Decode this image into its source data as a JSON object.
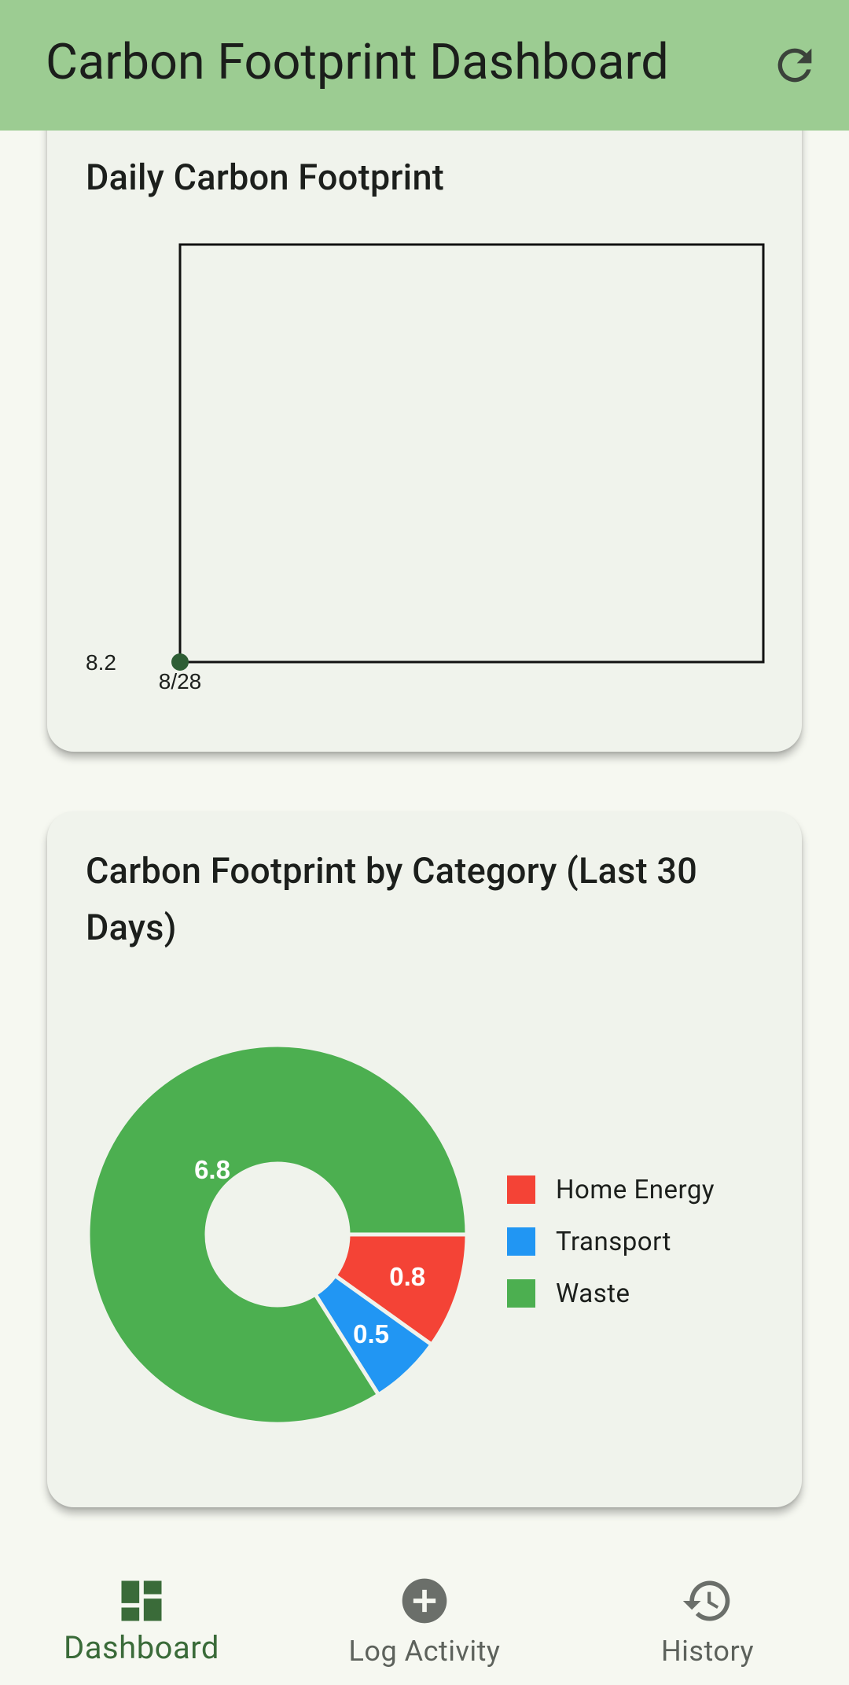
{
  "appbar": {
    "title": "Carbon Footprint Dashboard",
    "refresh_icon": "refresh-icon"
  },
  "daily_card": {
    "title": "Daily Carbon Footprint",
    "chart_data": {
      "type": "line",
      "title": "Daily Carbon Footprint",
      "x": [
        "8/28"
      ],
      "series": [
        {
          "values": [
            8.2
          ]
        }
      ],
      "y_tick_labels": [
        "8.2"
      ],
      "x_tick_labels": [
        "8/28"
      ],
      "color": "#2e5e35",
      "grid": false
    }
  },
  "category_card": {
    "title": "Carbon Footprint by Category (Last 30 Days)",
    "chart_data": {
      "type": "pie",
      "title": "Carbon Footprint by Category (Last 30 Days)",
      "categories": [
        "Home Energy",
        "Transport",
        "Waste"
      ],
      "values": [
        0.8,
        0.5,
        6.8
      ],
      "colors": [
        "#f44336",
        "#2196f3",
        "#4caf50"
      ],
      "value_labels": [
        "0.8",
        "0.5",
        "6.8"
      ],
      "legend_position": "right"
    }
  },
  "bottom_nav": {
    "items": [
      {
        "label": "Dashboard",
        "icon": "dashboard-icon",
        "active": true
      },
      {
        "label": "Log Activity",
        "icon": "add-circle-icon",
        "active": false
      },
      {
        "label": "History",
        "icon": "history-icon",
        "active": false
      }
    ]
  }
}
